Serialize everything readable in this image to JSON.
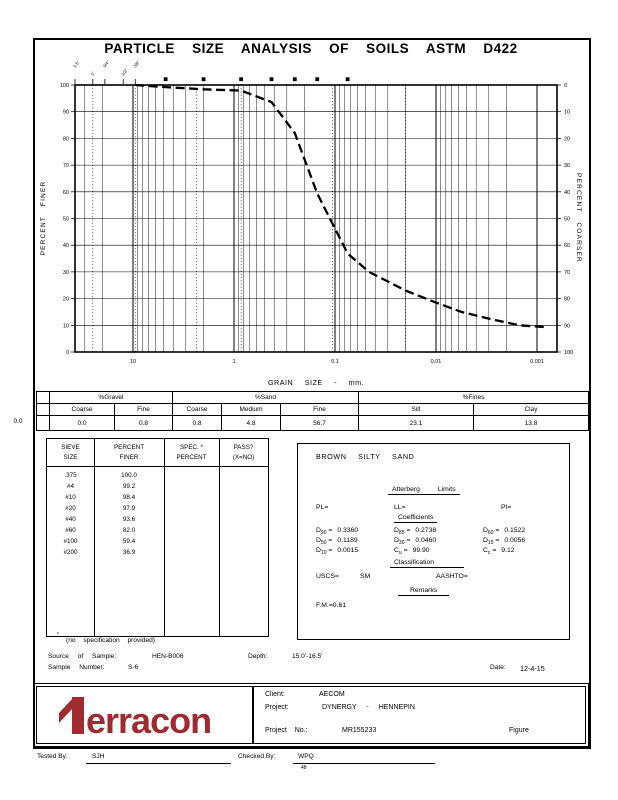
{
  "page": {
    "title": "PARTICLE SIZE ANALYSIS OF SOILS ASTM D422"
  },
  "colors": {
    "logo_red": "#9e2b2f",
    "ink": "#000000"
  },
  "chart_data": {
    "type": "line",
    "title": "Grain size distribution curve",
    "xlabel": "GRAIN SIZE - mm.",
    "ylabel_left": "PERCENT FINER",
    "ylabel_right": "PERCENT COARSER",
    "x_scale": "log",
    "xmin_mm": 37.5,
    "xmax_mm": 0.00065,
    "ylim": [
      0,
      100
    ],
    "grid": true,
    "y_ticks": [
      100,
      90,
      80,
      70,
      60,
      50,
      40,
      30,
      20,
      10,
      0
    ],
    "x_decades": [
      {
        "label": "10",
        "value": 10
      },
      {
        "label": "1",
        "value": 1
      },
      {
        "label": "0.1",
        "value": 0.1
      },
      {
        "label": "0.01",
        "value": 0.01
      },
      {
        "label": "0.001",
        "value": 0.001
      }
    ],
    "dotted_lines_mm": [
      25,
      9.5,
      2.36,
      0.85,
      0.106,
      0.02
    ],
    "sieves_inch": [
      {
        "label": "1.5\"",
        "mm": 37.5
      },
      {
        "label": "1\"",
        "mm": 25
      },
      {
        "label": "3/4\"",
        "mm": 19
      },
      {
        "label": "1/2\"",
        "mm": 12.5
      },
      {
        "label": "3/8\"",
        "mm": 9.5
      }
    ],
    "sieves_numbered": [
      {
        "label": "#4",
        "mm": 4.75
      },
      {
        "label": "#10",
        "mm": 2.0
      },
      {
        "label": "#20",
        "mm": 0.85
      },
      {
        "label": "#40",
        "mm": 0.425
      },
      {
        "label": "#60",
        "mm": 0.25
      },
      {
        "label": "#100",
        "mm": 0.15
      },
      {
        "label": "#200",
        "mm": 0.075
      }
    ],
    "series": [
      {
        "name": "percent finer (dashed curve)",
        "dash": true,
        "points": [
          [
            9.5,
            100.0
          ],
          [
            4.75,
            99.2
          ],
          [
            2.0,
            98.4
          ],
          [
            0.85,
            97.9
          ],
          [
            0.425,
            93.6
          ],
          [
            0.25,
            82.0
          ],
          [
            0.15,
            59.4
          ],
          [
            0.075,
            36.9
          ],
          [
            0.046,
            30.0
          ],
          [
            0.02,
            23.0
          ],
          [
            0.01,
            18.5
          ],
          [
            0.0056,
            15.0
          ],
          [
            0.003,
            12.5
          ],
          [
            0.0015,
            10.0
          ],
          [
            0.0008,
            9.3
          ]
        ]
      }
    ]
  },
  "fractions_table": {
    "lead_value": "0.0",
    "groups": [
      {
        "label": "%Gravel"
      },
      {
        "label": "%Sand"
      },
      {
        "label": "%Fines"
      }
    ],
    "subheads": [
      "Coarse",
      "Fine",
      "Coarse",
      "Medium",
      "Fine",
      "Silt",
      "Clay"
    ],
    "values": [
      "0.0",
      "0.8",
      "0.8",
      "4.8",
      "56.7",
      "23.1",
      "13.8"
    ]
  },
  "sieve_table": {
    "headers": {
      "col1a": "SIEVE",
      "col1b": "SIZE",
      "col2a": "PERCENT",
      "col2b": "FINER",
      "col3a": "SPEC. *",
      "col3b": "PERCENT",
      "col4a": "PASS?",
      "col4b": "(X=NO)"
    },
    "rows": [
      {
        "size": ".375",
        "finer": "100.0"
      },
      {
        "size": "#4",
        "finer": "99.2"
      },
      {
        "size": "#10",
        "finer": "98.4"
      },
      {
        "size": "#20",
        "finer": "97.9"
      },
      {
        "size": "#40",
        "finer": "93.6"
      },
      {
        "size": "#60",
        "finer": "82.0"
      },
      {
        "size": "#100",
        "finer": "59.4"
      },
      {
        "size": "#200",
        "finer": "36.9"
      }
    ],
    "footnote_star": "*",
    "footnote": "(no specification provided)"
  },
  "description": {
    "material": "BROWN SILTY SAND",
    "atterberg_heading": "Atterberg Limits",
    "pl_label": "PL=",
    "ll_label": "LL=",
    "pi_label": "PI=",
    "coefficients_heading": "Coefficients",
    "eq": "=",
    "coefficients": {
      "col1": [
        {
          "base": "D",
          "sub": "90",
          "value": "0.3360"
        },
        {
          "base": "D",
          "sub": "50",
          "value": "0.1189"
        },
        {
          "base": "D",
          "sub": "10",
          "value": "0.0015"
        }
      ],
      "col2": [
        {
          "base": "D",
          "sub": "85",
          "value": "0.2738"
        },
        {
          "base": "D",
          "sub": "30",
          "value": "0.0460"
        },
        {
          "base": "C",
          "sub": "u",
          "value": "99.90"
        }
      ],
      "col3": [
        {
          "base": "D",
          "sub": "60",
          "value": "0.1522"
        },
        {
          "base": "D",
          "sub": "15",
          "value": "0.0056"
        },
        {
          "base": "C",
          "sub": "c",
          "value": "9.12"
        }
      ]
    },
    "classification_heading": "Classification",
    "uscs_label": "USCS=",
    "uscs_value": "SM",
    "aashto_label": "AASHTO=",
    "remarks_heading": "Remarks",
    "fm_note": "F.M.=0.61"
  },
  "sample_info": {
    "source_label": "Source of Sample:",
    "source_value": "HEN-B006",
    "depth_label": "Depth:",
    "depth_value": "15.0'-16.5'",
    "sample_label": "Sample Number:",
    "sample_value": "S-6",
    "date_label": "Date:",
    "date_value": "12-4-15"
  },
  "footer": {
    "logo_text": "erracon",
    "client_label": "Client:",
    "client": "AECOM",
    "project_label": "Project:",
    "project": "DYNERGY - HENNEPIN",
    "project_no_label": "Project No.:",
    "project_no": "MR155233",
    "figure_label": "Figure"
  },
  "signatures": {
    "tested_label": "Tested By:",
    "tested": "SJH",
    "checked_label": "Checked By:",
    "checked": "WPQ",
    "checked_sub": "48"
  }
}
